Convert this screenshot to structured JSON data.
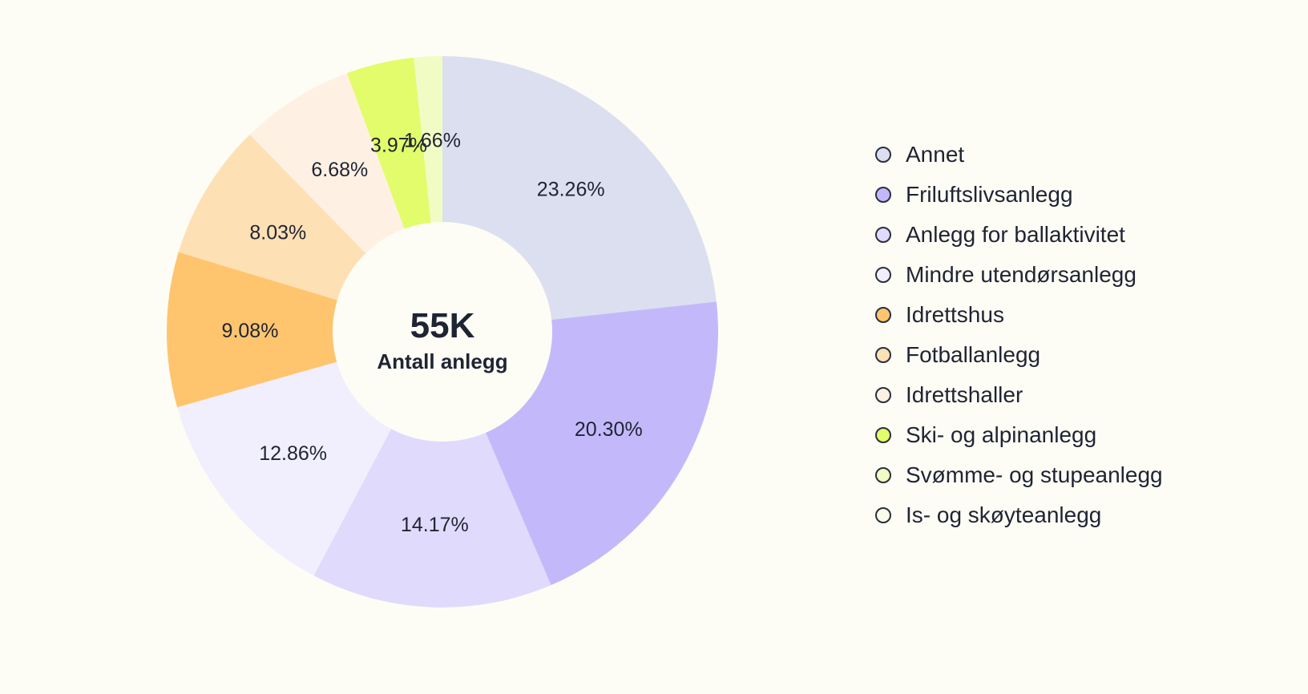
{
  "chart_data": {
    "type": "pie",
    "variant": "donut",
    "center": {
      "value": "55K",
      "caption": "Antall anlegg"
    },
    "legend_position": "right",
    "slices": [
      {
        "name": "Annet",
        "value": 23.26,
        "label": "23.26%",
        "color": "#dcdff0"
      },
      {
        "name": "Friluftslivsanlegg",
        "value": 20.3,
        "label": "20.30%",
        "color": "#c3b9fa"
      },
      {
        "name": "Anlegg for ballaktivitet",
        "value": 14.17,
        "label": "14.17%",
        "color": "#e0dafc"
      },
      {
        "name": "Mindre utendørsanlegg",
        "value": 12.86,
        "label": "12.86%",
        "color": "#f1effd"
      },
      {
        "name": "Idrettshus",
        "value": 9.08,
        "label": "9.08%",
        "color": "#fec56e"
      },
      {
        "name": "Fotballanlegg",
        "value": 8.03,
        "label": "8.03%",
        "color": "#fee0b5"
      },
      {
        "name": "Idrettshaller",
        "value": 6.68,
        "label": "6.68%",
        "color": "#fef1e4"
      },
      {
        "name": "Ski- og alpinanlegg",
        "value": 3.97,
        "label": "3.97%",
        "color": "#e2fc6c"
      },
      {
        "name": "Svømme- og stupeanlegg",
        "value": 1.66,
        "label": "1.66%",
        "color": "#f0fcc4"
      },
      {
        "name": "Is- og skøyteanlegg",
        "value": 0,
        "label": "",
        "color": "#f8fce8"
      }
    ]
  }
}
